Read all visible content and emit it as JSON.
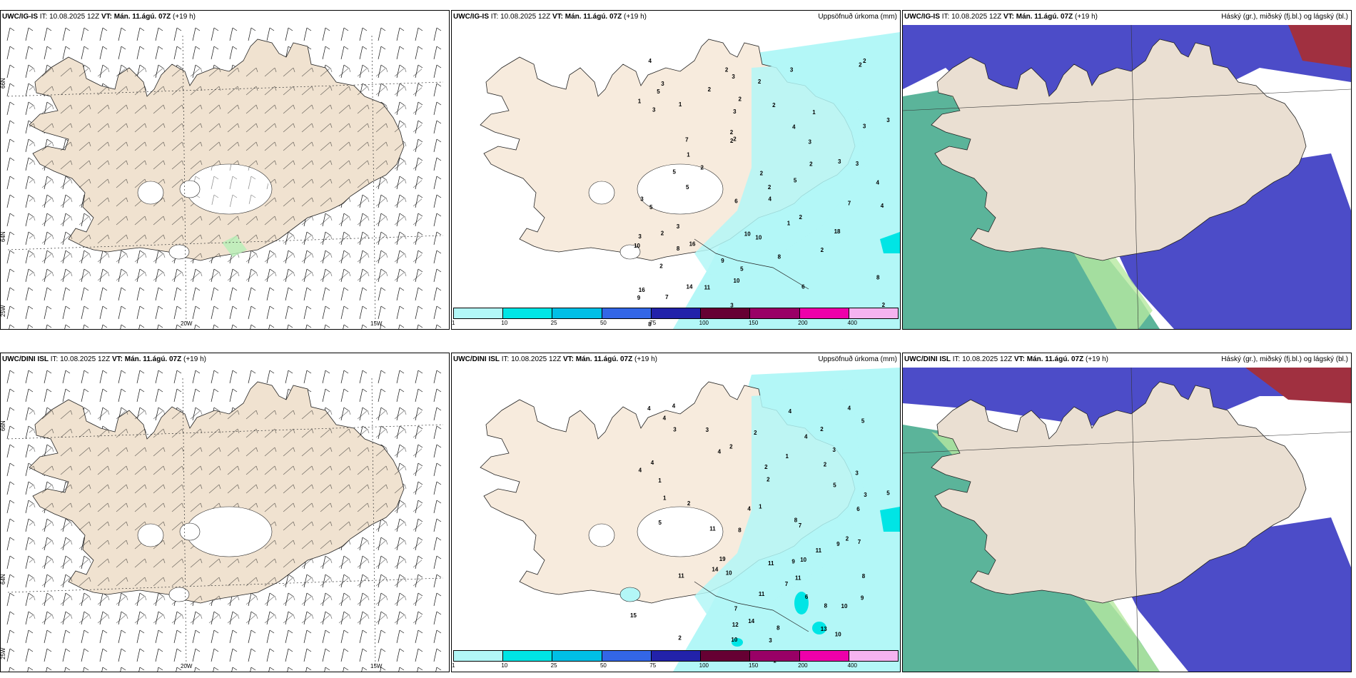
{
  "panels": [
    {
      "model": "UWC/IG-IS",
      "it": "IT: 10.08.2025 12Z",
      "vt": "VT: Mán. 11.ágú. 07Z",
      "lead": "(+19 h)",
      "right": ""
    },
    {
      "model": "UWC/IG-IS",
      "it": "IT: 10.08.2025 12Z",
      "vt": "VT: Mán. 11.ágú. 07Z",
      "lead": "(+19 h)",
      "right": "Uppsöfnuð úrkoma (mm)"
    },
    {
      "model": "UWC/IG-IS",
      "it": "IT: 10.08.2025 12Z",
      "vt": "VT: Mán. 11.ágú. 07Z",
      "lead": "(+19 h)",
      "right": "Háský (gr.), miðský (fj.bl.) og lágský (bl.)"
    },
    {
      "model": "UWC/DINI ISL",
      "it": "IT: 10.08.2025 12Z",
      "vt": "VT: Mán. 11.ágú. 07Z",
      "lead": "(+19 h)",
      "right": ""
    },
    {
      "model": "UWC/DINI ISL",
      "it": "IT: 10.08.2025 12Z",
      "vt": "VT: Mán. 11.ágú. 07Z",
      "lead": "(+19 h)",
      "right": "Uppsöfnuð úrkoma (mm)"
    },
    {
      "model": "UWC/DINI ISL",
      "it": "IT: 10.08.2025 12Z",
      "vt": "VT: Mán. 11.ágú. 07Z",
      "lead": "(+19 h)",
      "right": "Háský (gr.), miðský (fj.bl.) og lágský (bl.)"
    }
  ],
  "grid_labels": {
    "lat66": "66N",
    "lat64": "64N",
    "lon25": "25W",
    "lon20": "20W",
    "lon15": "15W"
  },
  "colorbar": {
    "ticks": [
      "1",
      "10",
      "25",
      "50",
      "75",
      "100",
      "150",
      "200",
      "400"
    ],
    "colors": [
      "#b2f7f7",
      "#00e5e5",
      "#00bfe6",
      "#3366e6",
      "#2222aa",
      "#660033",
      "#990066",
      "#ee00aa",
      "#f5b3f0"
    ]
  },
  "colors": {
    "land": "#f0e2d0",
    "precip": "#b3f7f7",
    "high_cloud": "#5bb49a",
    "mid_cloud": "#4c4cc8",
    "low_cloud": "#a7c6ef"
  },
  "precip_numbers_top": [
    "2",
    "4",
    "2",
    "2",
    "3",
    "3",
    "3",
    "2",
    "5",
    "2",
    "1",
    "1",
    "2",
    "2",
    "1",
    "3",
    "3",
    "3",
    "4",
    "3",
    "2",
    "2",
    "2",
    "7",
    "3",
    "1",
    "3",
    "3",
    "2",
    "2",
    "2",
    "5",
    "5",
    "5",
    "4",
    "2",
    "3",
    "6",
    "4",
    "5",
    "7",
    "4",
    "2",
    "1",
    "3",
    "2",
    "3",
    "10",
    "18",
    "10",
    "16",
    "10",
    "8",
    "2",
    "2",
    "8",
    "9",
    "5",
    "8",
    "10",
    "11",
    "6",
    "14",
    "9",
    "16",
    "7",
    "2",
    "3",
    "1",
    "7",
    "8"
  ],
  "precip_numbers_bot": [
    "4",
    "4",
    "4",
    "4",
    "5",
    "4",
    "3",
    "3",
    "2",
    "2",
    "4",
    "3",
    "4",
    "2",
    "1",
    "4",
    "2",
    "2",
    "4",
    "1",
    "3",
    "2",
    "5",
    "5",
    "3",
    "1",
    "2",
    "1",
    "4",
    "6",
    "8",
    "5",
    "11",
    "7",
    "8",
    "2",
    "7",
    "11",
    "9",
    "10",
    "19",
    "11",
    "14",
    "9",
    "10",
    "11",
    "8",
    "11",
    "7",
    "11",
    "6",
    "9",
    "8",
    "10",
    "7",
    "15",
    "12",
    "14",
    "8",
    "13",
    "10",
    "10",
    "2",
    "3",
    "2",
    "4",
    "2",
    "1"
  ]
}
